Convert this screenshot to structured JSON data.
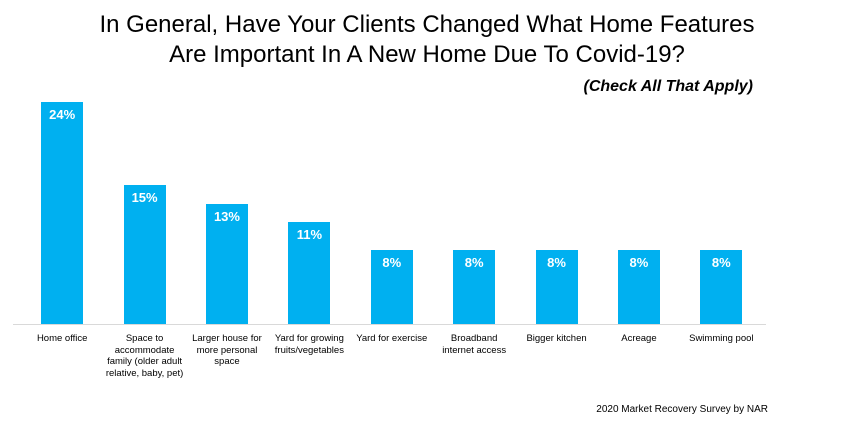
{
  "chart_data": {
    "type": "bar",
    "title": "In General, Have Your Clients Changed What Home Features Are Important In A New Home Due To Covid-19?",
    "title_lines": [
      "In General, Have Your Clients Changed What Home Features",
      "Are Important In A New Home Due To Covid-19?"
    ],
    "subtitle": "(Check All That Apply)",
    "categories": [
      "Home office",
      "Space to accommodate family (older adult relative, baby, pet)",
      "Larger house for more personal space",
      "Yard for growing fruits/vegetables",
      "Yard for exercise",
      "Broadband internet access",
      "Bigger kitchen",
      "Acreage",
      "Swimming pool"
    ],
    "category_label_lines": [
      [
        "Home office"
      ],
      [
        "Space to",
        "accommodate",
        "family (older adult",
        "relative, baby, pet)"
      ],
      [
        "Larger house for",
        "more personal",
        "space"
      ],
      [
        "Yard for growing",
        "fruits/vegetables"
      ],
      [
        "Yard for exercise"
      ],
      [
        "Broadband",
        "internet access"
      ],
      [
        "Bigger kitchen"
      ],
      [
        "Acreage"
      ],
      [
        "Swimming pool"
      ]
    ],
    "values": [
      24,
      15,
      13,
      11,
      8,
      8,
      8,
      8,
      8
    ],
    "value_labels": [
      "24%",
      "15%",
      "13%",
      "11%",
      "8%",
      "8%",
      "8%",
      "8%",
      "8%"
    ],
    "unit": "%",
    "ylim": [
      0,
      25
    ],
    "grid": false,
    "legend": false,
    "bar_color": "#00B0F0",
    "value_label_color": "#FFFFFF",
    "axis_line_color": "#D9D9D9",
    "source": "2020 Market Recovery Survey by NAR"
  }
}
